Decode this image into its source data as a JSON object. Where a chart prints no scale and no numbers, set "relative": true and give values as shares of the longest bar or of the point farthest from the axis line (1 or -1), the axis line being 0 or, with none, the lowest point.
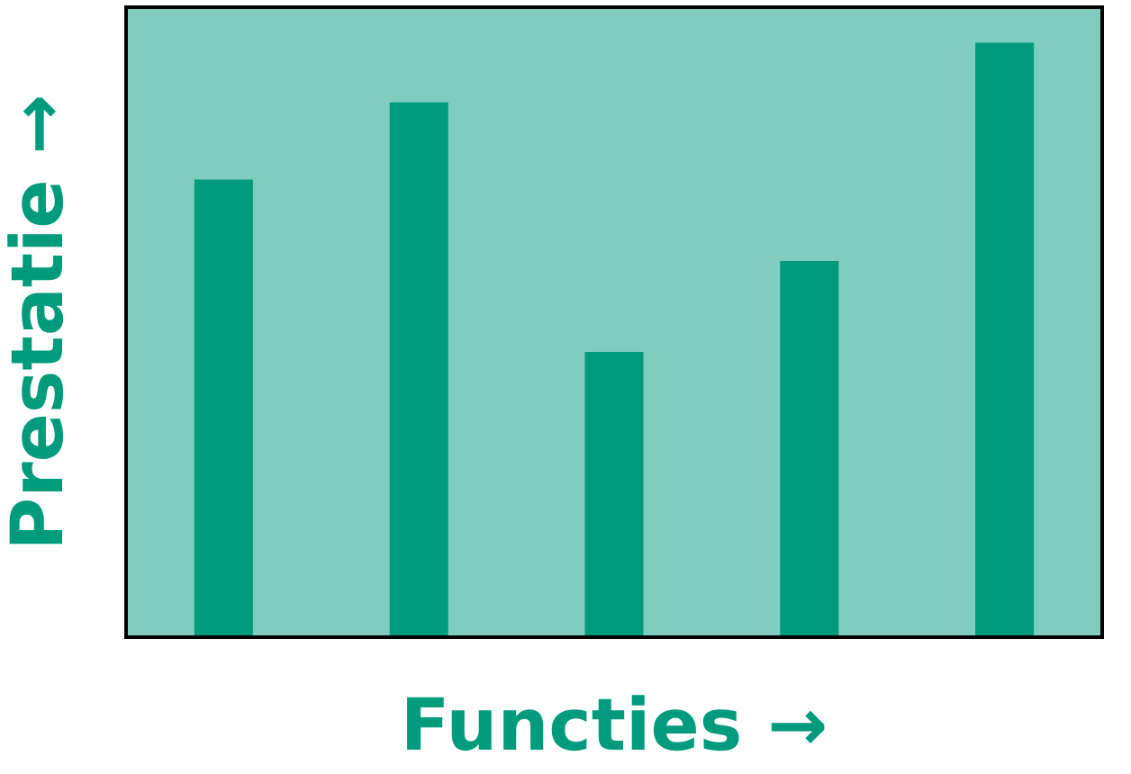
{
  "chart_data": {
    "type": "bar",
    "xlabel": "Functies →",
    "ylabel": "Prestatie →",
    "relative": true,
    "categories": [
      null,
      null,
      null,
      null,
      null
    ],
    "values": [
      0.77,
      0.9,
      0.48,
      0.633,
      1
    ],
    "color": "#009b7d"
  }
}
